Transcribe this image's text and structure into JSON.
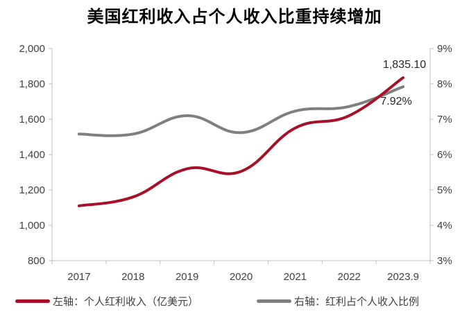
{
  "chart_data": {
    "type": "line",
    "title": "美国红利收入占个人收入比重持续增加",
    "categories": [
      "2017",
      "2018",
      "2019",
      "2020",
      "2021",
      "2022",
      "2023.9"
    ],
    "left_axis": {
      "ylim": [
        800,
        2000
      ],
      "ticks": [
        "800",
        "1,000",
        "1,200",
        "1,400",
        "1,600",
        "1,800",
        "2,000"
      ]
    },
    "right_axis": {
      "ylim": [
        3,
        9
      ],
      "ticks": [
        "3%",
        "4%",
        "5%",
        "6%",
        "7%",
        "8%",
        "9%"
      ]
    },
    "series": [
      {
        "name": "左轴：个人红利收入（亿美元）",
        "axis": "left",
        "color": "#a8102a",
        "values": [
          1110,
          1160,
          1320,
          1305,
          1550,
          1620,
          1835.1
        ]
      },
      {
        "name": "右轴：红利占个人收入比例",
        "axis": "right",
        "color": "#7f7f7f",
        "values": [
          6.58,
          6.58,
          7.1,
          6.62,
          7.23,
          7.36,
          7.92
        ]
      }
    ],
    "annotations": [
      {
        "series": 0,
        "text": "1,835.10"
      },
      {
        "series": 1,
        "text": "7.92%"
      }
    ],
    "grid": false,
    "legend": "bottom"
  }
}
